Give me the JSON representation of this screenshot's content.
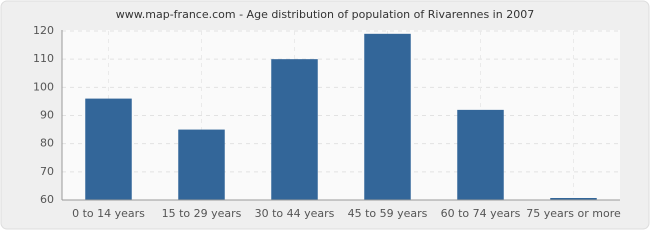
{
  "chart_data": {
    "type": "bar",
    "title": "www.map-france.com - Age distribution of population of Rivarennes in 2007",
    "categories": [
      "0 to 14 years",
      "15 to 29 years",
      "30 to 44 years",
      "45 to 59 years",
      "60 to 74 years",
      "75 years or more"
    ],
    "values": [
      96,
      85,
      110,
      119,
      92,
      60
    ],
    "color": "#336699",
    "ylim": [
      60,
      120
    ],
    "yticks": [
      60,
      70,
      80,
      90,
      100,
      110,
      120
    ],
    "grid": true
  }
}
